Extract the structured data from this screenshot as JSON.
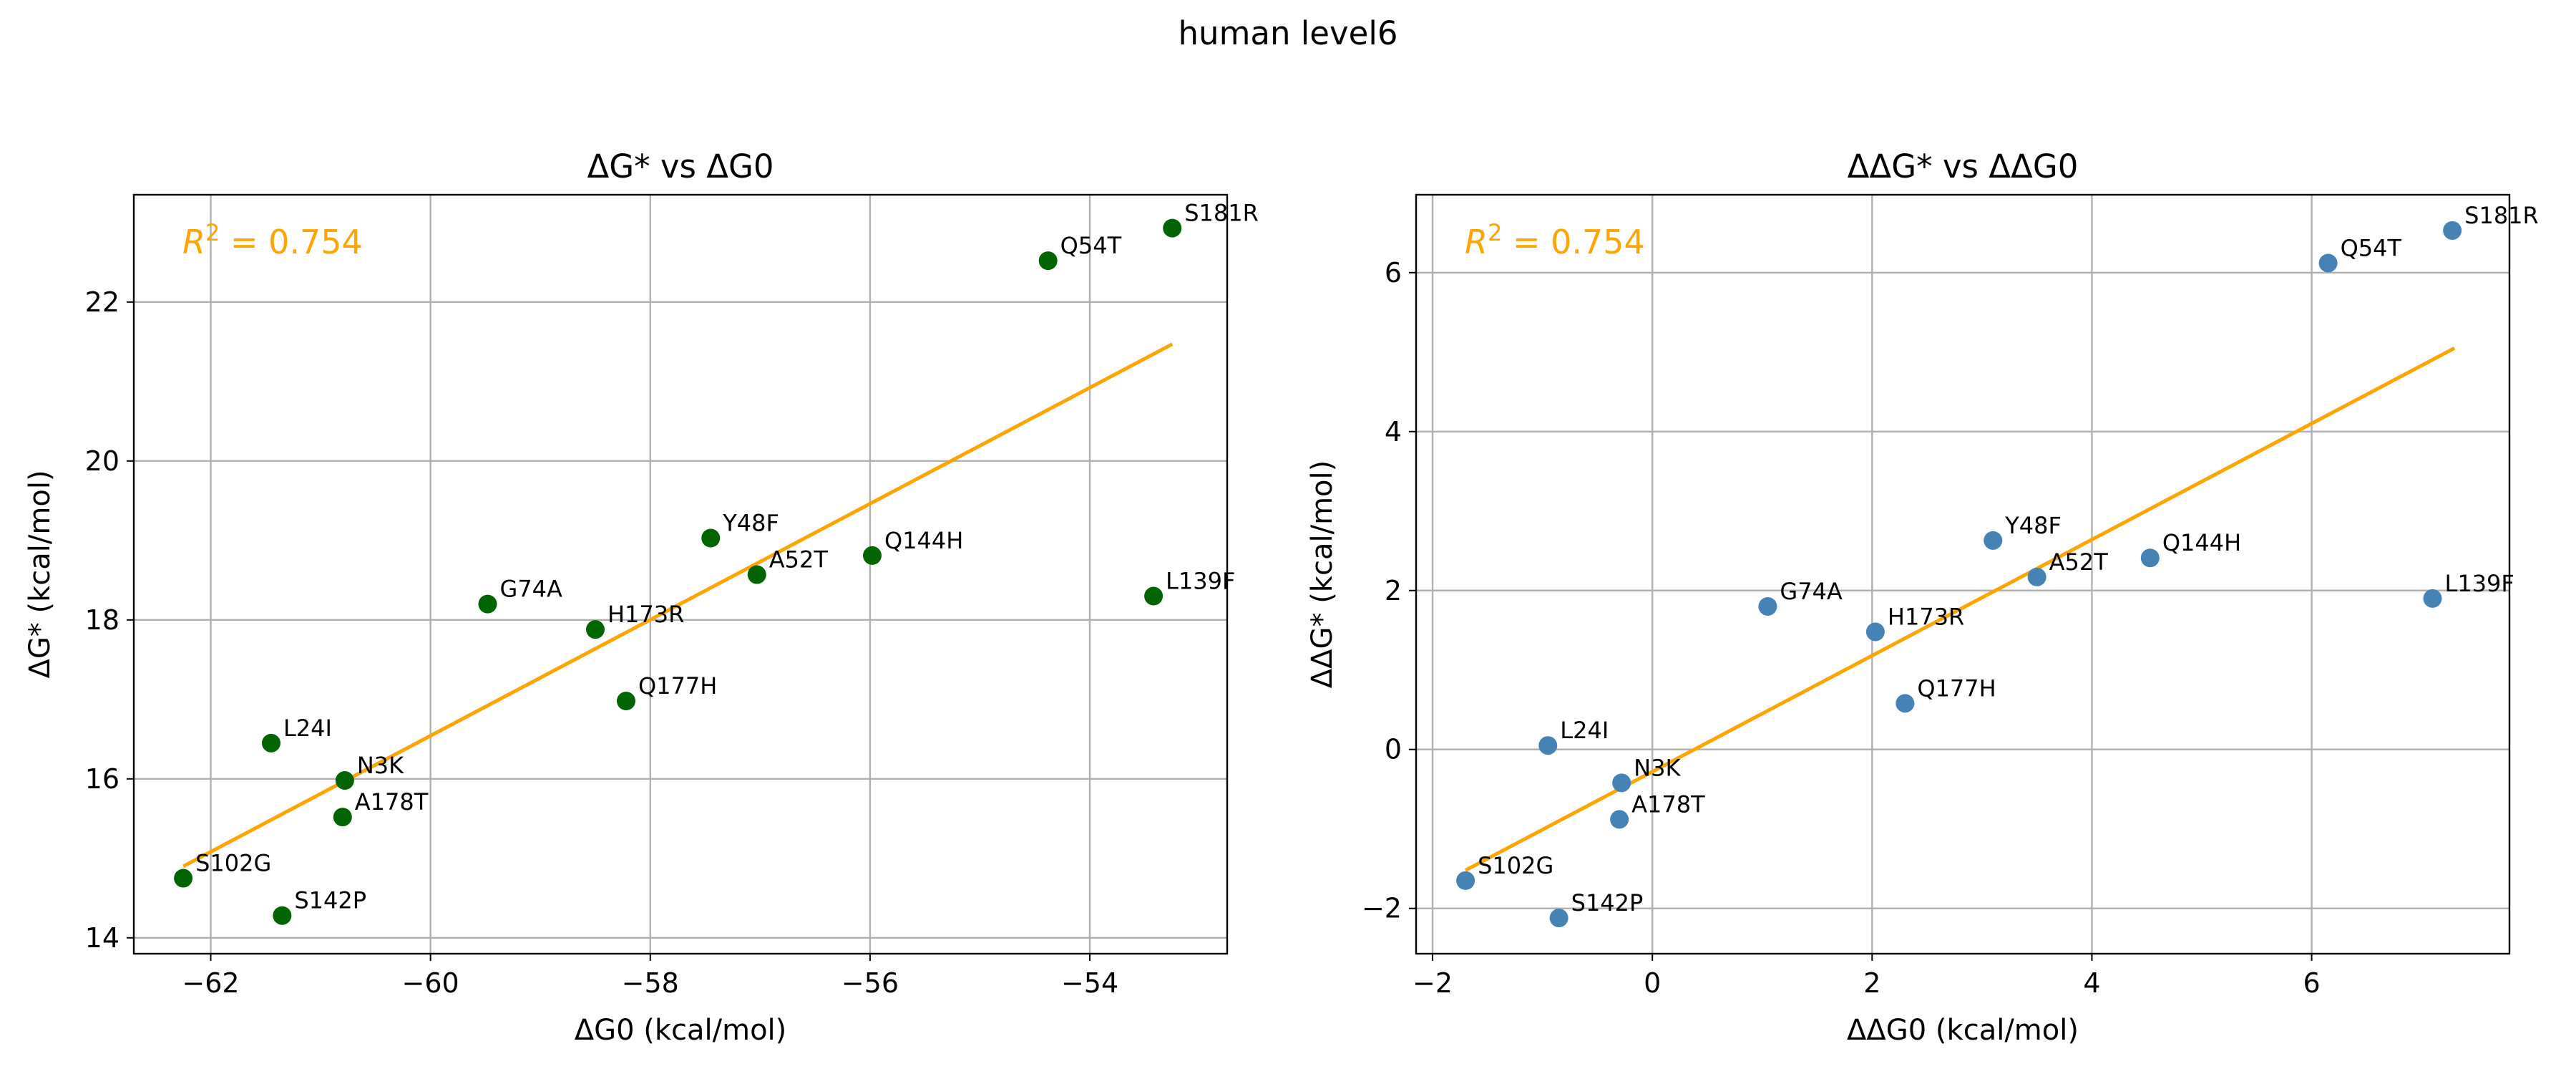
{
  "suptitle": "human level6",
  "chart_data": [
    {
      "type": "scatter",
      "title": "ΔG* vs ΔG0",
      "xlabel": "ΔG0 (kcal/mol)",
      "ylabel": "ΔG* (kcal/mol)",
      "xlim": [
        -62.7,
        -52.75
      ],
      "ylim": [
        13.8,
        23.35
      ],
      "xticks": [
        -62,
        -60,
        -58,
        -56,
        -54
      ],
      "xtick_labels": [
        "−62",
        "−60",
        "−58",
        "−56",
        "−54"
      ],
      "yticks": [
        14,
        16,
        18,
        20,
        22
      ],
      "ytick_labels": [
        "14",
        "16",
        "18",
        "20",
        "22"
      ],
      "grid": true,
      "point_color": "#006400",
      "fit_color": "#FFA500",
      "annotation": {
        "prefix": "R",
        "sup": "2",
        "value": " = 0.754"
      },
      "fit_line": {
        "x": [
          -62.25,
          -53.25
        ],
        "y": [
          14.9,
          21.47
        ]
      },
      "points": [
        {
          "label": "S102G",
          "x": -62.25,
          "y": 14.75
        },
        {
          "label": "S142P",
          "x": -61.35,
          "y": 14.28
        },
        {
          "label": "L24I",
          "x": -61.45,
          "y": 16.45
        },
        {
          "label": "N3K",
          "x": -60.78,
          "y": 15.98
        },
        {
          "label": "A178T",
          "x": -60.8,
          "y": 15.52
        },
        {
          "label": "G74A",
          "x": -59.48,
          "y": 18.2
        },
        {
          "label": "H173R",
          "x": -58.5,
          "y": 17.88
        },
        {
          "label": "Q177H",
          "x": -58.22,
          "y": 16.98
        },
        {
          "label": "Y48F",
          "x": -57.45,
          "y": 19.03
        },
        {
          "label": "A52T",
          "x": -57.03,
          "y": 18.57
        },
        {
          "label": "Q144H",
          "x": -55.98,
          "y": 18.81
        },
        {
          "label": "Q54T",
          "x": -54.38,
          "y": 22.52
        },
        {
          "label": "L139F",
          "x": -53.42,
          "y": 18.3
        },
        {
          "label": "S181R",
          "x": -53.25,
          "y": 22.93
        }
      ]
    },
    {
      "type": "scatter",
      "title": "ΔΔG* vs ΔΔG0",
      "xlabel": "ΔΔG0 (kcal/mol)",
      "ylabel": "ΔΔG* (kcal/mol)",
      "xlim": [
        -2.15,
        7.8
      ],
      "ylim": [
        -2.57,
        6.98
      ],
      "xticks": [
        -2,
        0,
        2,
        4,
        6
      ],
      "xtick_labels": [
        "−2",
        "0",
        "2",
        "4",
        "6"
      ],
      "yticks": [
        -2,
        0,
        2,
        4,
        6
      ],
      "ytick_labels": [
        "−2",
        "0",
        "2",
        "4",
        "6"
      ],
      "grid": true,
      "point_color": "#4682B4",
      "fit_color": "#FFA500",
      "annotation": {
        "prefix": "R",
        "sup": "2",
        "value": " = 0.754"
      },
      "fit_line": {
        "x": [
          -1.7,
          7.3
        ],
        "y": [
          -1.52,
          5.05
        ]
      },
      "points": [
        {
          "label": "S102G",
          "x": -1.7,
          "y": -1.65
        },
        {
          "label": "S142P",
          "x": -0.85,
          "y": -2.12
        },
        {
          "label": "L24I",
          "x": -0.95,
          "y": 0.05
        },
        {
          "label": "N3K",
          "x": -0.28,
          "y": -0.42
        },
        {
          "label": "A178T",
          "x": -0.3,
          "y": -0.88
        },
        {
          "label": "G74A",
          "x": 1.05,
          "y": 1.8
        },
        {
          "label": "H173R",
          "x": 2.03,
          "y": 1.48
        },
        {
          "label": "Q177H",
          "x": 2.3,
          "y": 0.58
        },
        {
          "label": "Y48F",
          "x": 3.1,
          "y": 2.63
        },
        {
          "label": "A52T",
          "x": 3.5,
          "y": 2.17
        },
        {
          "label": "Q144H",
          "x": 4.53,
          "y": 2.41
        },
        {
          "label": "Q54T",
          "x": 6.15,
          "y": 6.12
        },
        {
          "label": "L139F",
          "x": 7.1,
          "y": 1.9
        },
        {
          "label": "S181R",
          "x": 7.28,
          "y": 6.53
        }
      ]
    }
  ]
}
